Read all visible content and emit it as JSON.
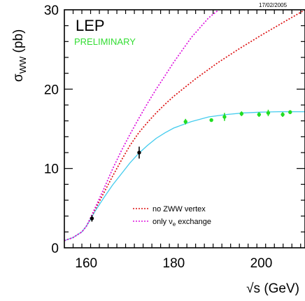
{
  "chart_data": {
    "type": "line",
    "title": "LEP",
    "subtitle": "PRELIMINARY",
    "date": "17/02/2005",
    "xlabel": "√s (GeV)",
    "ylabel": {
      "base": "σ",
      "sub": "WW",
      "suffix": " (pb)"
    },
    "xlim": [
      155,
      210
    ],
    "ylim": [
      0,
      30
    ],
    "x_ticks": [
      160,
      180,
      200
    ],
    "y_ticks": [
      0,
      10,
      20,
      30
    ],
    "grid": false,
    "legend_position": "lower-right",
    "legend": [
      {
        "text": "no ZWW vertex",
        "color": "#dd1111",
        "style": "dotted"
      },
      {
        "text": "only ν",
        "text_sub": "e",
        "text_suffix": " exchange",
        "color": "#dd11dd",
        "style": "dotted"
      }
    ],
    "series": [
      {
        "color": "#44ccee",
        "style": "solid",
        "x": [
          155,
          157,
          159,
          160,
          161,
          162,
          164,
          166,
          168,
          170,
          172,
          174,
          176,
          178,
          180,
          184,
          188,
          192,
          196,
          200,
          204,
          208,
          210
        ],
        "y": [
          0.9,
          1.3,
          2.0,
          2.7,
          3.6,
          4.6,
          6.3,
          7.9,
          9.3,
          10.7,
          11.9,
          12.9,
          13.8,
          14.5,
          15.1,
          15.9,
          16.5,
          16.8,
          17.0,
          17.1,
          17.15,
          17.15,
          17.15
        ]
      },
      {
        "name": "no ZWW vertex",
        "color": "#dd1111",
        "style": "dotted",
        "x": [
          155,
          157,
          159,
          160,
          161,
          162,
          164,
          166,
          168,
          170,
          172,
          174,
          176,
          178,
          180,
          185,
          190,
          195,
          200,
          205,
          210
        ],
        "y": [
          0.9,
          1.3,
          2.0,
          2.7,
          3.7,
          4.8,
          6.9,
          9.0,
          11.0,
          12.9,
          14.5,
          15.8,
          17.0,
          18.1,
          19.1,
          21.3,
          23.3,
          25.1,
          26.8,
          28.4,
          30.0
        ]
      },
      {
        "name": "only νe exchange",
        "color": "#dd11dd",
        "style": "dotted",
        "x": [
          155,
          157,
          159,
          160,
          161,
          162,
          164,
          166,
          168,
          170,
          172,
          174,
          176,
          178,
          180,
          184,
          188,
          190.3
        ],
        "y": [
          0.9,
          1.3,
          2.0,
          2.7,
          3.8,
          5.0,
          7.4,
          9.9,
          12.2,
          14.3,
          16.3,
          18.2,
          20.0,
          21.7,
          23.4,
          26.5,
          29.0,
          30.0
        ]
      }
    ],
    "measurements": [
      {
        "x": 161.3,
        "y": 3.7,
        "err": 0.4,
        "color": "#000000"
      },
      {
        "x": 172.1,
        "y": 12.0,
        "err": 0.75,
        "color": "#000000"
      },
      {
        "x": 182.7,
        "y": 15.9,
        "err": 0.35,
        "color": "#22dd22"
      },
      {
        "x": 188.6,
        "y": 16.1,
        "err": 0.2,
        "color": "#22dd22"
      },
      {
        "x": 191.6,
        "y": 16.5,
        "err": 0.5,
        "color": "#22dd22"
      },
      {
        "x": 195.5,
        "y": 16.9,
        "err": 0.3,
        "color": "#22dd22"
      },
      {
        "x": 199.5,
        "y": 16.8,
        "err": 0.3,
        "color": "#22dd22"
      },
      {
        "x": 201.6,
        "y": 17.0,
        "err": 0.4,
        "color": "#22dd22"
      },
      {
        "x": 204.9,
        "y": 16.8,
        "err": 0.3,
        "color": "#22dd22"
      },
      {
        "x": 206.6,
        "y": 17.1,
        "err": 0.25,
        "color": "#22dd22"
      }
    ]
  }
}
